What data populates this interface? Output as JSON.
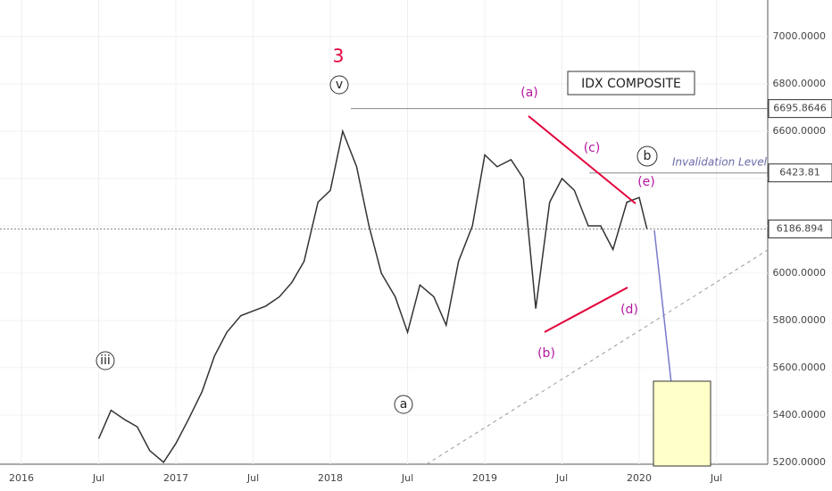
{
  "chart_data": {
    "type": "line",
    "title": "IDX COMPOSITE",
    "x": [
      2016.5,
      2016.58,
      2016.67,
      2016.75,
      2016.83,
      2016.92,
      2017.0,
      2017.08,
      2017.17,
      2017.25,
      2017.33,
      2017.42,
      2017.5,
      2017.58,
      2017.67,
      2017.75,
      2017.83,
      2017.92,
      2018.0,
      2018.08,
      2018.17,
      2018.25,
      2018.33,
      2018.42,
      2018.5,
      2018.58,
      2018.67,
      2018.75,
      2018.83,
      2018.92,
      2019.0,
      2019.08,
      2019.17,
      2019.25,
      2019.33,
      2019.42,
      2019.5,
      2019.58,
      2019.67,
      2019.75,
      2019.83,
      2019.92,
      2020.0,
      2020.05
    ],
    "series": [
      {
        "name": "IDX COMPOSITE",
        "color": "#333333",
        "values": [
          5300,
          5420,
          5380,
          5350,
          5250,
          5200,
          5280,
          5380,
          5500,
          5650,
          5750,
          5820,
          5840,
          5860,
          5900,
          5960,
          6050,
          6300,
          6350,
          6600,
          6450,
          6200,
          6000,
          5900,
          5750,
          5950,
          5900,
          5780,
          6050,
          6200,
          6500,
          6450,
          6480,
          6400,
          5850,
          6300,
          6400,
          6350,
          6200,
          6200,
          6100,
          6300,
          6320,
          6187
        ]
      }
    ],
    "xlim": [
      2015.861,
      2020.832
    ],
    "ylim": [
      5192,
      7155
    ],
    "xticks": [
      {
        "value": 2016,
        "label": "2016"
      },
      {
        "value": 2016.5,
        "label": "Jul"
      },
      {
        "value": 2017,
        "label": "2017"
      },
      {
        "value": 2017.5,
        "label": "Jul"
      },
      {
        "value": 2018,
        "label": "2018"
      },
      {
        "value": 2018.5,
        "label": "Jul"
      },
      {
        "value": 2019,
        "label": "2019"
      },
      {
        "value": 2019.5,
        "label": "Jul"
      },
      {
        "value": 2020,
        "label": "2020"
      },
      {
        "value": 2020.5,
        "label": "Jul"
      }
    ],
    "yticks": [
      {
        "value": 5200,
        "label": "5200.0000"
      },
      {
        "value": 5400,
        "label": "5400.0000"
      },
      {
        "value": 5600,
        "label": "5600.0000"
      },
      {
        "value": 5800,
        "label": "5800.0000"
      },
      {
        "value": 6000,
        "label": "6000.0000"
      },
      {
        "value": 6200,
        "label": "6200.0000"
      },
      {
        "value": 6400,
        "label": "6400.0000"
      },
      {
        "value": 6600,
        "label": "6600.0000"
      },
      {
        "value": 6800,
        "label": "6800.0000"
      },
      {
        "value": 7000,
        "label": "7000.0000"
      }
    ],
    "grid": true,
    "price_lines": [
      6695.8646,
      6423.81,
      6186.894
    ],
    "annotations": [
      "3",
      "v",
      "iii",
      "a",
      "(a)",
      "(b)",
      "(c)",
      "(d)",
      "(e)",
      "b",
      "Invalidation Level"
    ]
  }
}
